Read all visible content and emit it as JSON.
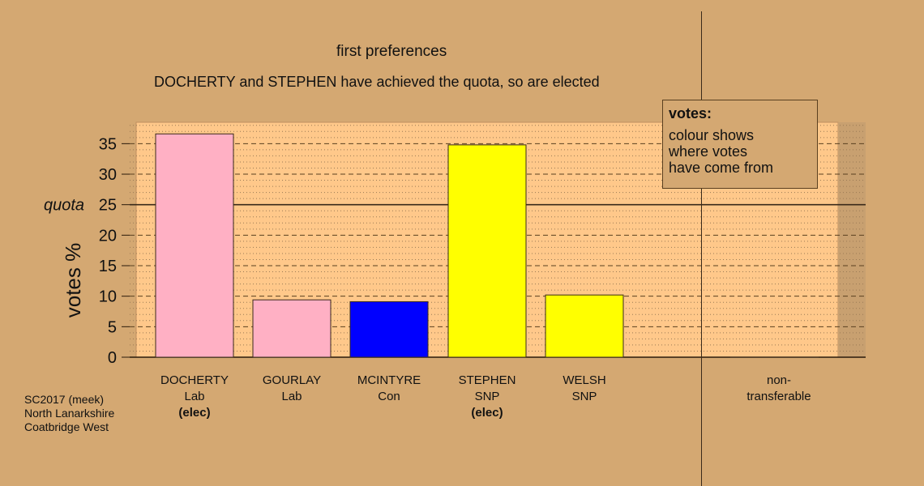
{
  "chart_data": {
    "type": "bar",
    "title": "first preferences",
    "subtitle": "DOCHERTY and STEPHEN have achieved the quota, so are elected",
    "ylabel": "votes %",
    "ylim": [
      0,
      38.5
    ],
    "yticks": [
      0,
      5,
      10,
      15,
      20,
      25,
      30,
      35
    ],
    "quota_label": "quota",
    "quota": 25,
    "categories": [
      {
        "name": "DOCHERTY",
        "party": "Lab",
        "status": "(elec)",
        "value": 36.6,
        "color": "#ffb0c4"
      },
      {
        "name": "GOURLAY",
        "party": "Lab",
        "status": "",
        "value": 9.4,
        "color": "#ffb0c4"
      },
      {
        "name": "MCINTYRE",
        "party": "Con",
        "status": "",
        "value": 9.1,
        "color": "#0000ff"
      },
      {
        "name": "STEPHEN",
        "party": "SNP",
        "status": "(elec)",
        "value": 34.8,
        "color": "#ffff00"
      },
      {
        "name": "WELSH",
        "party": "SNP",
        "status": "",
        "value": 10.2,
        "color": "#ffff00"
      }
    ],
    "non_transferable": {
      "line1": "non-",
      "line2": "transferable",
      "value": 0
    },
    "legend": {
      "title": "votes:",
      "lines": [
        "colour shows",
        "where votes",
        "have come from"
      ]
    }
  },
  "source": {
    "line1": "SC2017 (meek)",
    "line2": "North Lanarkshire",
    "line3": "Coatbridge West"
  },
  "colors": {
    "background": "#d4a872",
    "plot_area": "#ffc88a"
  }
}
